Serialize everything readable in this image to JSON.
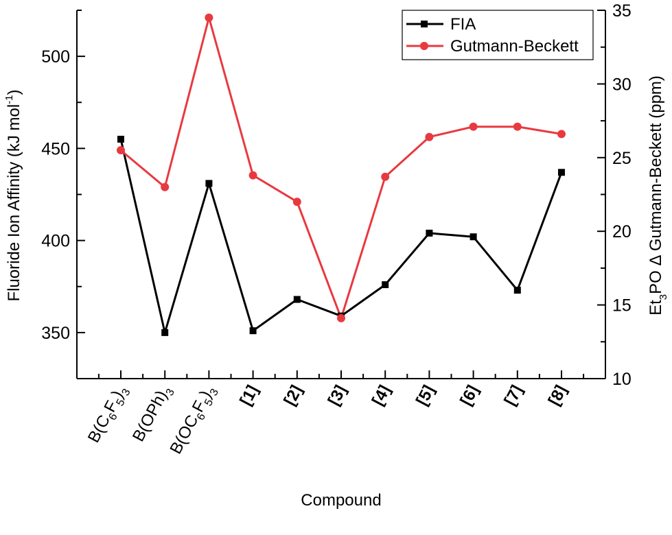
{
  "chart_data": {
    "type": "line",
    "xlabel": "Compound",
    "categories": [
      {
        "base": "B(C",
        "sub1": "6",
        "mid": "F",
        "sub2": "5",
        "end": ")",
        "sub3": "3",
        "bold": false
      },
      {
        "base": "B(OPh)",
        "sub1": "3",
        "mid": "",
        "sub2": "",
        "end": "",
        "sub3": "",
        "bold": false
      },
      {
        "base": "B(OC",
        "sub1": "6",
        "mid": "F",
        "sub2": "5",
        "end": ")",
        "sub3": "3",
        "bold": false
      },
      {
        "base": "[1]",
        "sub1": "",
        "mid": "",
        "sub2": "",
        "end": "",
        "sub3": "",
        "bold": true
      },
      {
        "base": "[2]",
        "sub1": "",
        "mid": "",
        "sub2": "",
        "end": "",
        "sub3": "",
        "bold": true
      },
      {
        "base": "[3]",
        "sub1": "",
        "mid": "",
        "sub2": "",
        "end": "",
        "sub3": "",
        "bold": true
      },
      {
        "base": "[4]",
        "sub1": "",
        "mid": "",
        "sub2": "",
        "end": "",
        "sub3": "",
        "bold": true
      },
      {
        "base": "[5]",
        "sub1": "",
        "mid": "",
        "sub2": "",
        "end": "",
        "sub3": "",
        "bold": true
      },
      {
        "base": "[6]",
        "sub1": "",
        "mid": "",
        "sub2": "",
        "end": "",
        "sub3": "",
        "bold": true
      },
      {
        "base": "[7]",
        "sub1": "",
        "mid": "",
        "sub2": "",
        "end": "",
        "sub3": "",
        "bold": true
      },
      {
        "base": "[8]",
        "sub1": "",
        "mid": "",
        "sub2": "",
        "end": "",
        "sub3": "",
        "bold": true
      }
    ],
    "y_left": {
      "label_main": "Fluoride Ion Affinity (kJ mol",
      "label_sup": "-1",
      "label_end": ")",
      "ylim": [
        325,
        525
      ],
      "ticks": [
        350,
        400,
        450,
        500
      ]
    },
    "y_right": {
      "label_a": "Et",
      "label_sub": "3",
      "label_b": "PO Δ Gutmann-Beckett (ppm)",
      "ylim": [
        10,
        35
      ],
      "ticks": [
        10,
        15,
        20,
        25,
        30,
        35
      ]
    },
    "series": [
      {
        "name": "FIA",
        "axis": "left",
        "color": "#000000",
        "marker": "square",
        "values": [
          455,
          350,
          431,
          351,
          368,
          359,
          376,
          404,
          402,
          373,
          437
        ]
      },
      {
        "name": "Gutmann-Beckett",
        "axis": "right",
        "color": "#e8393f",
        "marker": "circle",
        "values": [
          25.5,
          23.0,
          34.5,
          23.8,
          22.0,
          14.1,
          23.7,
          26.4,
          27.1,
          27.1,
          26.6
        ]
      }
    ],
    "legend_position": "top-right",
    "grid": false
  }
}
